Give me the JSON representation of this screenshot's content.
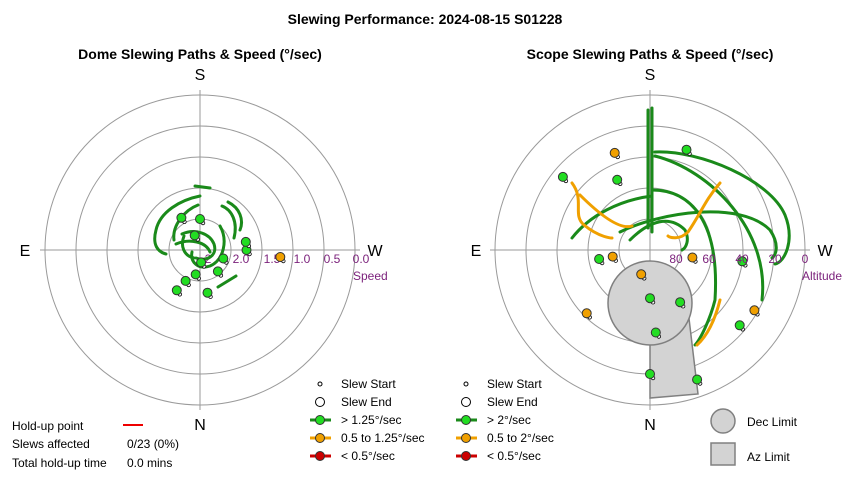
{
  "title": "Slewing Performance: 2024-08-15 S01228",
  "dome": {
    "title": "Dome Slewing Paths & Speed (°/sec)",
    "cardinals": {
      "top": "S",
      "bottom": "N",
      "left": "E",
      "right": "W"
    },
    "ticks": [
      "2.0",
      "1.5",
      "1.0",
      "0.5",
      "0.0"
    ],
    "tick_first": "2",
    "axis_label": "Speed",
    "legend": {
      "slew_start": "Slew Start",
      "slew_end": "Slew End",
      "fast": "> 1.25°/sec",
      "medium": "0.5 to 1.25°/sec",
      "slow": "< 0.5°/sec"
    }
  },
  "scope": {
    "title": "Scope Slewing Paths & Speed (°/sec)",
    "cardinals": {
      "top": "S",
      "bottom": "N",
      "left": "E",
      "right": "W"
    },
    "ticks": [
      "80",
      "60",
      "40",
      "20",
      "0"
    ],
    "axis_label": "Altitude",
    "legend": {
      "slew_start": "Slew Start",
      "slew_end": "Slew End",
      "fast": "> 2°/sec",
      "medium": "0.5 to 2°/sec",
      "slow": "< 0.5°/sec"
    },
    "limits": {
      "dec": "Dec Limit",
      "az": "Az Limit"
    }
  },
  "stats": {
    "holdup_label": "Hold-up point",
    "slews_label": "Slews affected",
    "slews_value": "0/23 (0%)",
    "total_label": "Total hold-up time",
    "total_value": "0.0 mins"
  },
  "colors": {
    "fast": "#1a8a1a",
    "fast_marker": "#22dd22",
    "medium": "#f0a000",
    "medium_marker": "#f0a000",
    "slow": "#cc0000",
    "holdup": "#ee0000",
    "grid": "#9a9a9a",
    "tick": "#7a1f7a",
    "limit_fill": "#d3d3d3",
    "limit_stroke": "#808080"
  },
  "chart_data": [
    {
      "type": "scatter",
      "title": "Dome Slewing Paths & Speed (°/sec)",
      "radial_axis": "Speed",
      "radial_ticks": [
        2.0,
        1.5,
        1.0,
        0.5,
        0.0
      ],
      "rlim": [
        2.5,
        0.0
      ],
      "grid": true,
      "legend": "bottom",
      "series": [
        {
          "name": "> 1.25°/sec",
          "points": [
            {
              "az": 170,
              "speed": 1.8
            },
            {
              "az": 205,
              "speed": 1.95
            },
            {
              "az": 210,
              "speed": 1.75
            },
            {
              "az": 90,
              "speed": 1.75
            },
            {
              "az": 80,
              "speed": 1.75
            },
            {
              "az": 110,
              "speed": 2.1
            },
            {
              "az": 330,
              "speed": 1.9
            },
            {
              "az": 140,
              "speed": 2.05
            },
            {
              "az": 175,
              "speed": 2.3
            },
            {
              "az": 190,
              "speed": 2.1
            },
            {
              "az": 0,
              "speed": 2.0
            },
            {
              "az": 340,
              "speed": 2.25
            }
          ]
        },
        {
          "name": "0.5 to 1.25°/sec",
          "points": [
            {
              "az": 95,
              "speed": 1.2
            }
          ]
        }
      ]
    },
    {
      "type": "scatter",
      "title": "Scope Slewing Paths & Speed (°/sec)",
      "radial_axis": "Altitude",
      "radial_ticks": [
        80,
        60,
        40,
        20,
        0
      ],
      "rlim": [
        90,
        0
      ],
      "grid": true,
      "legend": "bottom",
      "series": [
        {
          "name": "> 2°/sec",
          "points": [
            {
              "az": 180,
              "alt": 18
            },
            {
              "az": 176,
              "alt": 42
            },
            {
              "az": 180,
              "alt": 62
            },
            {
              "az": 150,
              "alt": 55
            },
            {
              "az": 97,
              "alt": 36
            },
            {
              "az": 260,
              "alt": 60
            },
            {
              "az": 310,
              "alt": 24
            },
            {
              "az": 335,
              "alt": 45
            },
            {
              "az": 130,
              "alt": 22
            },
            {
              "az": 20,
              "alt": 28
            },
            {
              "az": 160,
              "alt": 10
            }
          ]
        },
        {
          "name": "0.5 to 2°/sec",
          "points": [
            {
              "az": 120,
              "alt": 20
            },
            {
              "az": 225,
              "alt": 38
            },
            {
              "az": 100,
              "alt": 65
            },
            {
              "az": 200,
              "alt": 75
            },
            {
              "az": 340,
              "alt": 30
            },
            {
              "az": 260,
              "alt": 68
            }
          ]
        }
      ]
    }
  ]
}
